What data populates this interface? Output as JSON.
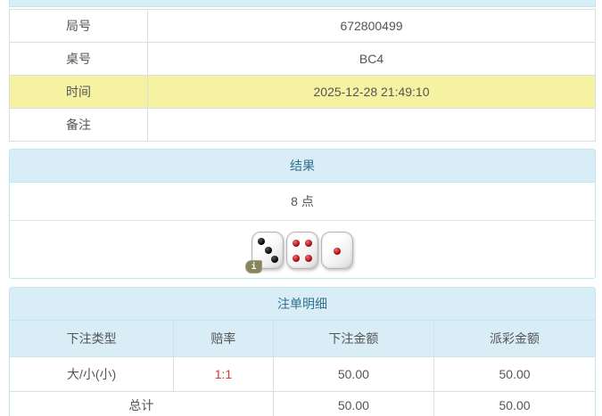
{
  "colors": {
    "header_bg": "#d9edf7",
    "header_text": "#31708f",
    "border_blue": "#bce8f1",
    "border_gray": "#dddddd",
    "text": "#555555",
    "highlight_yellow": "#f5f2a1",
    "odds_red": "#e23333"
  },
  "info_table": {
    "rows": [
      {
        "label": "局号",
        "value": "672800499",
        "highlight": false
      },
      {
        "label": "桌号",
        "value": "BC4",
        "highlight": false
      },
      {
        "label": "时间",
        "value": "2025-12-28 21:49:10",
        "highlight": true
      },
      {
        "label": "备注",
        "value": "",
        "highlight": false
      }
    ]
  },
  "result_panel": {
    "title": "结果",
    "points": "8 点",
    "dice": [
      {
        "value": 3,
        "color": "black"
      },
      {
        "value": 4,
        "color": "red"
      },
      {
        "value": 1,
        "color": "red"
      }
    ],
    "info_icon": "i"
  },
  "bets_panel": {
    "title": "注单明细",
    "columns": [
      "下注类型",
      "赔率",
      "下注金额",
      "派彩金额"
    ],
    "rows": [
      {
        "bet_type": "大/小(小)",
        "odds": "1:1",
        "bet_amount": "50.00",
        "payout": "50.00"
      }
    ],
    "total": {
      "label": "总计",
      "bet_amount": "50.00",
      "payout": "50.00"
    }
  }
}
